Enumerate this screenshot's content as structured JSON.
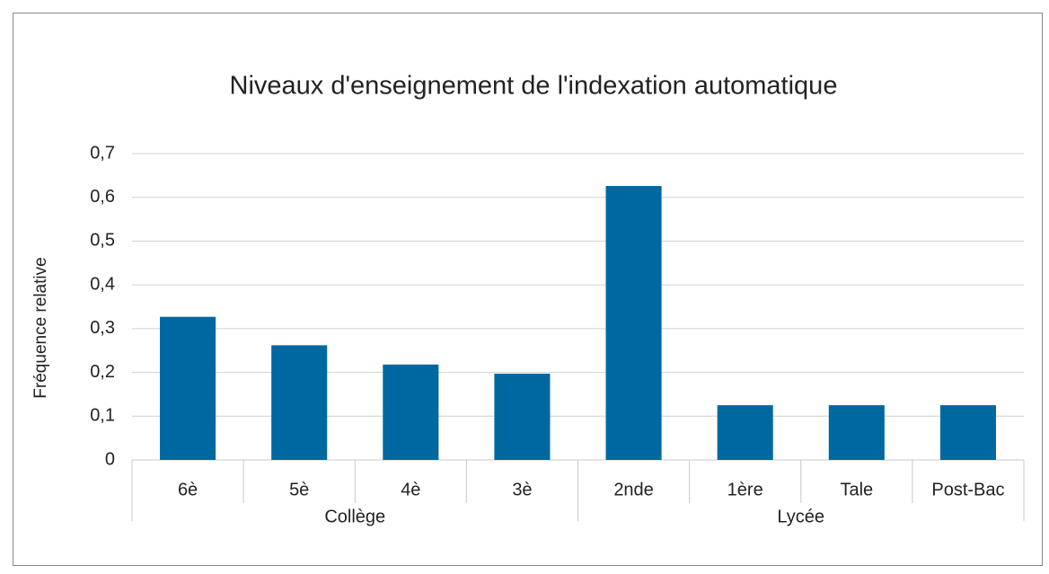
{
  "chart_data": {
    "type": "bar",
    "title": "Niveaux d'enseignement de l'indexation automatique",
    "y_label": "Fréquence relative",
    "groups": [
      {
        "name": "Collège",
        "categories": [
          "6è",
          "5è",
          "4è",
          "3è"
        ]
      },
      {
        "name": "Lycée",
        "categories": [
          "2nde",
          "1ère",
          "Tale",
          "Post-Bac"
        ]
      }
    ],
    "values": [
      0.327,
      0.262,
      0.218,
      0.197,
      0.626,
      0.125,
      0.125,
      0.125
    ],
    "color": "#0068a0",
    "ylim": [
      0,
      0.7
    ],
    "yticks": [
      0,
      {
        "value": 0.1,
        "label": "0,1"
      },
      {
        "value": 0.2,
        "label": "0,2"
      },
      {
        "value": 0.3,
        "label": "0,3"
      },
      {
        "value": 0.4,
        "label": "0,4"
      },
      {
        "value": 0.5,
        "label": "0,5"
      },
      {
        "value": 0.6,
        "label": "0,6"
      },
      {
        "value": 0.7,
        "label": "0,7"
      }
    ],
    "grid": true
  }
}
